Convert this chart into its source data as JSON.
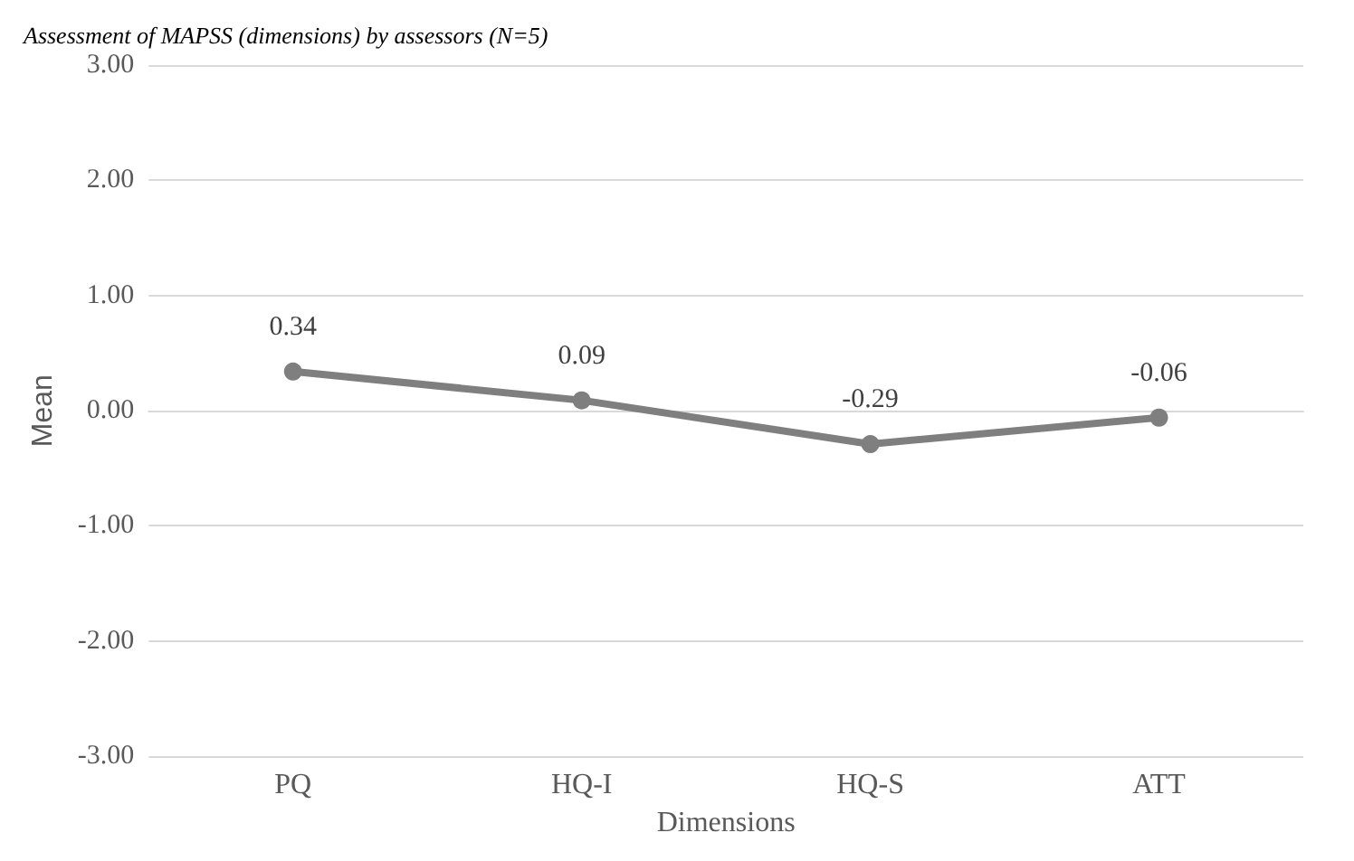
{
  "chart_data": {
    "type": "line",
    "title": "Assessment of MAPSS (dimensions) by assessors (N=5)",
    "xlabel": "Dimensions",
    "ylabel": "Mean",
    "categories": [
      "PQ",
      "HQ-I",
      "HQ-S",
      "ATT"
    ],
    "series": [
      {
        "color": "#7f7f7f",
        "values": [
          0.34,
          0.09,
          -0.29,
          -0.06
        ]
      }
    ],
    "ylim": [
      -3,
      3
    ],
    "yticks": [
      {
        "value": -3,
        "label": "-3.00"
      },
      {
        "value": -2,
        "label": "-2.00"
      },
      {
        "value": -1,
        "label": "-1.00"
      },
      {
        "value": 0,
        "label": "0.00"
      },
      {
        "value": 1,
        "label": "1.00"
      },
      {
        "value": 2,
        "label": "2.00"
      },
      {
        "value": 3,
        "label": "3.00"
      }
    ],
    "grid": "y",
    "marker": "circle",
    "line_style": "solid",
    "data_labels": true
  }
}
